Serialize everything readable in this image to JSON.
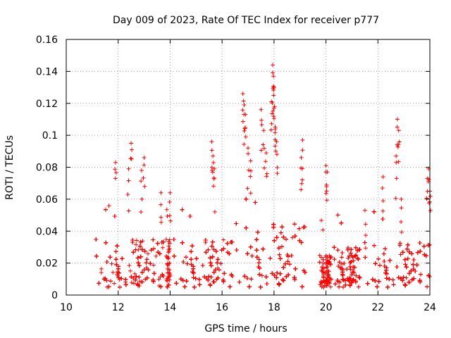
{
  "chart_data": {
    "type": "scatter",
    "title": "Day 009 of 2023, Rate Of TEC Index for receiver p777",
    "xlabel": "GPS time / hours",
    "ylabel": "ROTI / TECUs",
    "xlim": [
      10,
      24
    ],
    "ylim": [
      0,
      0.16
    ],
    "grid": true,
    "marker": "+",
    "color": "#ff0000",
    "x_ticks": [
      "10",
      "12",
      "14",
      "16",
      "18",
      "20",
      "22",
      "24"
    ],
    "y_ticks": [
      "0",
      "0.02",
      "0.04",
      "0.06",
      "0.08",
      "0.1",
      "0.12",
      "0.14",
      "0.16"
    ],
    "series": [
      {
        "name": "ROTI",
        "segments": [
          {
            "start": 11.1,
            "end": 13.75,
            "base": 0.018,
            "spread": 0.03
          },
          {
            "start": 13.85,
            "end": 14.0,
            "base": 0.02,
            "spread": 0.03
          },
          {
            "start": 14.1,
            "end": 16.4,
            "base": 0.018,
            "spread": 0.03
          },
          {
            "start": 16.5,
            "end": 19.2,
            "base": 0.02,
            "spread": 0.04
          },
          {
            "start": 19.75,
            "end": 20.2,
            "base": 0.015,
            "spread": 0.02
          },
          {
            "start": 20.3,
            "end": 21.3,
            "base": 0.016,
            "spread": 0.025
          },
          {
            "start": 21.45,
            "end": 24.0,
            "base": 0.017,
            "spread": 0.028
          }
        ],
        "peaks": [
          {
            "x": 11.9,
            "y": 0.083
          },
          {
            "x": 12.5,
            "y": 0.095
          },
          {
            "x": 12.4,
            "y": 0.079
          },
          {
            "x": 13.0,
            "y": 0.086
          },
          {
            "x": 12.9,
            "y": 0.078
          },
          {
            "x": 13.65,
            "y": 0.064
          },
          {
            "x": 14.0,
            "y": 0.064
          },
          {
            "x": 15.6,
            "y": 0.096
          },
          {
            "x": 15.65,
            "y": 0.087
          },
          {
            "x": 15.7,
            "y": 0.079
          },
          {
            "x": 16.8,
            "y": 0.126
          },
          {
            "x": 16.85,
            "y": 0.119
          },
          {
            "x": 16.9,
            "y": 0.113
          },
          {
            "x": 17.0,
            "y": 0.092
          },
          {
            "x": 17.1,
            "y": 0.084
          },
          {
            "x": 17.5,
            "y": 0.116
          },
          {
            "x": 17.6,
            "y": 0.103
          },
          {
            "x": 17.7,
            "y": 0.089
          },
          {
            "x": 17.9,
            "y": 0.121
          },
          {
            "x": 17.95,
            "y": 0.144
          },
          {
            "x": 17.98,
            "y": 0.137
          },
          {
            "x": 18.0,
            "y": 0.13
          },
          {
            "x": 18.02,
            "y": 0.118
          },
          {
            "x": 18.05,
            "y": 0.104
          },
          {
            "x": 18.1,
            "y": 0.096
          },
          {
            "x": 19.1,
            "y": 0.097
          },
          {
            "x": 19.05,
            "y": 0.086
          },
          {
            "x": 20.0,
            "y": 0.081
          },
          {
            "x": 20.05,
            "y": 0.077
          },
          {
            "x": 21.5,
            "y": 0.053
          },
          {
            "x": 22.2,
            "y": 0.074
          },
          {
            "x": 22.75,
            "y": 0.11
          },
          {
            "x": 22.8,
            "y": 0.103
          },
          {
            "x": 22.7,
            "y": 0.087
          },
          {
            "x": 22.9,
            "y": 0.06
          },
          {
            "x": 23.95,
            "y": 0.079
          },
          {
            "x": 23.9,
            "y": 0.073
          },
          {
            "x": 24.0,
            "y": 0.065
          }
        ]
      }
    ]
  }
}
